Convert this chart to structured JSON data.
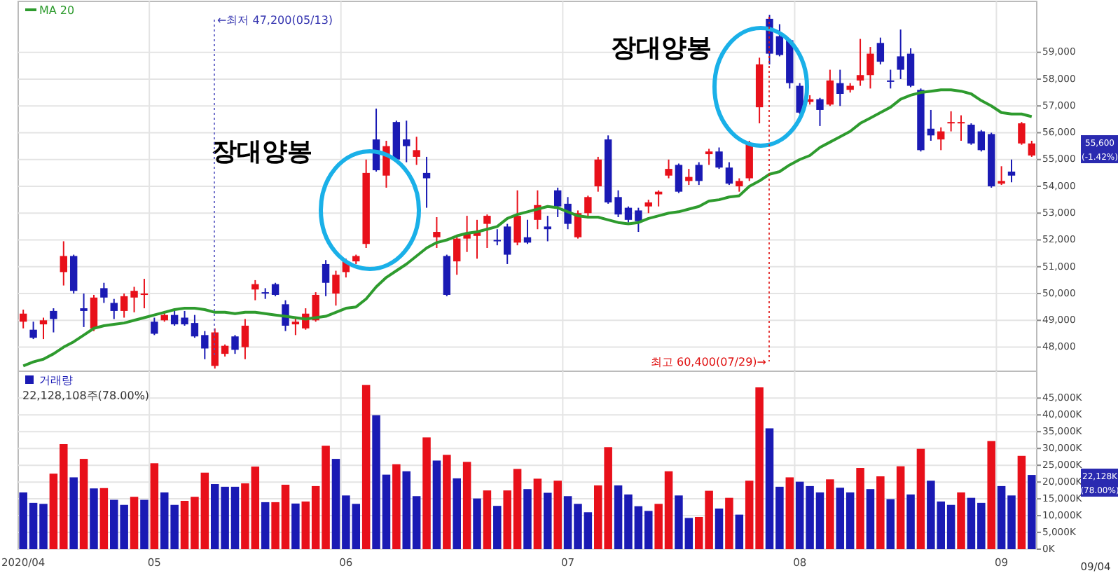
{
  "chart_data": [
    {
      "type": "candlestick",
      "grid": true,
      "tick_labels": "y",
      "legend": "top left",
      "ylim": [
        47100,
        60900
      ],
      "yticks": [
        {
          "value": 48000,
          "label": "48,000"
        },
        {
          "value": 49000,
          "label": "49,000"
        },
        {
          "value": 50000,
          "label": "50,000"
        },
        {
          "value": 51000,
          "label": "51,000"
        },
        {
          "value": 52000,
          "label": "52,000"
        },
        {
          "value": 53000,
          "label": "53,000"
        },
        {
          "value": 54000,
          "label": "54,000"
        },
        {
          "value": 55000,
          "label": "55,000"
        },
        {
          "value": 56000,
          "label": "56,000"
        },
        {
          "value": 57000,
          "label": "57,000"
        },
        {
          "value": 58000,
          "label": "58,000"
        },
        {
          "value": 59000,
          "label": "59,000"
        }
      ],
      "categories": [
        "2020/04",
        null,
        null,
        null,
        null,
        null,
        null,
        null,
        null,
        null,
        null,
        null,
        null,
        "05",
        null,
        null,
        null,
        null,
        null,
        null,
        null,
        null,
        null,
        null,
        null,
        null,
        null,
        null,
        null,
        null,
        null,
        null,
        "06",
        null,
        null,
        null,
        null,
        null,
        null,
        null,
        null,
        null,
        null,
        null,
        null,
        null,
        null,
        null,
        null,
        null,
        null,
        null,
        null,
        null,
        "07",
        null,
        null,
        null,
        null,
        null,
        null,
        null,
        null,
        null,
        null,
        null,
        null,
        null,
        null,
        null,
        null,
        null,
        null,
        null,
        null,
        null,
        null,
        "08",
        null,
        null,
        null,
        null,
        null,
        null,
        null,
        null,
        null,
        null,
        null,
        null,
        null,
        null,
        null,
        null,
        null,
        null,
        null,
        "09",
        null,
        null,
        null
      ],
      "ohlc": [
        [
          48950,
          49400,
          48700,
          49250
        ],
        [
          48650,
          48950,
          48300,
          48350
        ],
        [
          48850,
          49100,
          48300,
          49000
        ],
        [
          49350,
          49450,
          48550,
          49050
        ],
        [
          50800,
          51950,
          50300,
          51400
        ],
        [
          51400,
          51450,
          50000,
          50100
        ],
        [
          49450,
          50000,
          48750,
          49350
        ],
        [
          48700,
          49950,
          48600,
          49850
        ],
        [
          50200,
          50400,
          49650,
          49850
        ],
        [
          49650,
          49800,
          49050,
          49350
        ],
        [
          49350,
          50000,
          49100,
          49900
        ],
        [
          49850,
          50250,
          49300,
          50100
        ],
        [
          49950,
          50550,
          49450,
          50000
        ],
        [
          48950,
          49100,
          48450,
          48500
        ],
        [
          49000,
          49350,
          48950,
          49200
        ],
        [
          49200,
          49350,
          48800,
          48850
        ],
        [
          49100,
          49350,
          48800,
          48850
        ],
        [
          48900,
          49200,
          48350,
          48400
        ],
        [
          48450,
          48600,
          47550,
          47950
        ],
        [
          47300,
          48700,
          47200,
          48550
        ],
        [
          47750,
          48100,
          47650,
          48050
        ],
        [
          48400,
          48450,
          47750,
          47900
        ],
        [
          48000,
          49050,
          47550,
          48800
        ],
        [
          50150,
          50500,
          49750,
          50350
        ],
        [
          50050,
          50200,
          49800,
          50000
        ],
        [
          50350,
          50400,
          49900,
          49950
        ],
        [
          49600,
          49750,
          48600,
          48800
        ],
        [
          48850,
          49100,
          48450,
          48950
        ],
        [
          48700,
          49450,
          48650,
          49250
        ],
        [
          49000,
          50050,
          48950,
          49950
        ],
        [
          51100,
          51250,
          49900,
          50400
        ],
        [
          50000,
          50850,
          49550,
          50700
        ],
        [
          50800,
          51300,
          50600,
          51200
        ],
        [
          51200,
          51450,
          51100,
          51400
        ],
        [
          51850,
          55000,
          51700,
          54500
        ],
        [
          55750,
          56900,
          54550,
          54600
        ],
        [
          54400,
          55700,
          53950,
          55500
        ],
        [
          56400,
          56450,
          54900,
          55000
        ],
        [
          55750,
          56450,
          54900,
          55500
        ],
        [
          55100,
          55850,
          54800,
          55350
        ],
        [
          54500,
          55100,
          53200,
          54300
        ],
        [
          52100,
          52850,
          51700,
          52300
        ],
        [
          51400,
          51450,
          49900,
          49950
        ],
        [
          51200,
          52150,
          50700,
          52050
        ],
        [
          52050,
          52900,
          51550,
          52250
        ],
        [
          52150,
          52750,
          51300,
          52300
        ],
        [
          52600,
          52950,
          51700,
          52900
        ],
        [
          52000,
          52400,
          51800,
          51950
        ],
        [
          52500,
          52600,
          51100,
          51450
        ],
        [
          51900,
          53850,
          51800,
          52900
        ],
        [
          52100,
          52750,
          51850,
          51900
        ],
        [
          52750,
          53850,
          52400,
          53300
        ],
        [
          52500,
          52900,
          51950,
          52400
        ],
        [
          53850,
          53950,
          52850,
          53250
        ],
        [
          53350,
          53600,
          52400,
          52600
        ],
        [
          52100,
          53100,
          52050,
          53000
        ],
        [
          53000,
          53650,
          52900,
          53600
        ],
        [
          54000,
          55100,
          53800,
          55000
        ],
        [
          55750,
          55900,
          53350,
          53400
        ],
        [
          53600,
          53850,
          52850,
          52950
        ],
        [
          53200,
          53250,
          52650,
          52750
        ],
        [
          53100,
          53200,
          52300,
          52700
        ],
        [
          53250,
          53500,
          53000,
          53400
        ],
        [
          53700,
          53850,
          53250,
          53800
        ],
        [
          54400,
          55000,
          54300,
          54650
        ],
        [
          54800,
          54850,
          53750,
          53800
        ],
        [
          54200,
          54650,
          54050,
          54350
        ],
        [
          54800,
          54900,
          54050,
          54200
        ],
        [
          55200,
          55400,
          54800,
          55300
        ],
        [
          55300,
          55450,
          54650,
          54700
        ],
        [
          54700,
          54900,
          54050,
          54100
        ],
        [
          54000,
          54300,
          53800,
          54200
        ],
        [
          54300,
          55700,
          54200,
          55600
        ],
        [
          56950,
          58800,
          56350,
          58550
        ],
        [
          60250,
          60400,
          58550,
          58950
        ],
        [
          59600,
          60050,
          58850,
          58900
        ],
        [
          59450,
          59500,
          57650,
          57850
        ],
        [
          57750,
          57850,
          56700,
          56750
        ],
        [
          57150,
          57400,
          57050,
          57250
        ],
        [
          57250,
          57300,
          56250,
          56850
        ],
        [
          57050,
          58350,
          57000,
          57950
        ],
        [
          57850,
          58350,
          57000,
          57450
        ],
        [
          57600,
          57850,
          57500,
          57750
        ],
        [
          57950,
          59500,
          57750,
          58150
        ],
        [
          58150,
          59200,
          57650,
          58950
        ],
        [
          59350,
          59550,
          58550,
          58650
        ],
        [
          57950,
          58350,
          57650,
          57900
        ],
        [
          58850,
          59850,
          58000,
          58350
        ],
        [
          58950,
          59150,
          57700,
          57750
        ],
        [
          57600,
          57650,
          55300,
          55350
        ],
        [
          56150,
          56850,
          55700,
          55900
        ],
        [
          55750,
          56200,
          55350,
          56050
        ],
        [
          56350,
          56800,
          56050,
          56400
        ],
        [
          56350,
          56650,
          55700,
          56400
        ],
        [
          56300,
          56350,
          55550,
          55600
        ],
        [
          56050,
          56100,
          55300,
          55350
        ],
        [
          55950,
          56000,
          53950,
          54000
        ],
        [
          54100,
          54750,
          54050,
          54200
        ],
        [
          54550,
          55000,
          54150,
          54400
        ],
        [
          55600,
          56400,
          55550,
          56350
        ],
        [
          55150,
          55700,
          55100,
          55600
        ]
      ],
      "colors": [
        "#e8101a",
        "#1a1ab4",
        "#e8101a",
        "#1a1ab4",
        "#e8101a",
        "#1a1ab4",
        "#1a1ab4",
        "#e8101a",
        "#1a1ab4",
        "#1a1ab4",
        "#e8101a",
        "#e8101a",
        "#e8101a",
        "#1a1ab4",
        "#e8101a",
        "#1a1ab4",
        "#1a1ab4",
        "#1a1ab4",
        "#1a1ab4",
        "#e8101a",
        "#e8101a",
        "#1a1ab4",
        "#e8101a",
        "#e8101a",
        "#1a1ab4",
        "#1a1ab4",
        "#1a1ab4",
        "#e8101a",
        "#e8101a",
        "#e8101a",
        "#1a1ab4",
        "#e8101a",
        "#e8101a",
        "#e8101a",
        "#e8101a",
        "#1a1ab4",
        "#e8101a",
        "#1a1ab4",
        "#1a1ab4",
        "#e8101a",
        "#1a1ab4",
        "#e8101a",
        "#1a1ab4",
        "#e8101a",
        "#e8101a",
        "#e8101a",
        "#e8101a",
        "#1a1ab4",
        "#1a1ab4",
        "#e8101a",
        "#1a1ab4",
        "#e8101a",
        "#1a1ab4",
        "#1a1ab4",
        "#1a1ab4",
        "#e8101a",
        "#e8101a",
        "#e8101a",
        "#1a1ab4",
        "#1a1ab4",
        "#1a1ab4",
        "#1a1ab4",
        "#e8101a",
        "#e8101a",
        "#e8101a",
        "#1a1ab4",
        "#e8101a",
        "#1a1ab4",
        "#e8101a",
        "#1a1ab4",
        "#1a1ab4",
        "#e8101a",
        "#e8101a",
        "#e8101a",
        "#1a1ab4",
        "#1a1ab4",
        "#1a1ab4",
        "#1a1ab4",
        "#e8101a",
        "#1a1ab4",
        "#e8101a",
        "#1a1ab4",
        "#e8101a",
        "#e8101a",
        "#e8101a",
        "#1a1ab4",
        "#1a1ab4",
        "#1a1ab4",
        "#1a1ab4",
        "#1a1ab4",
        "#1a1ab4",
        "#e8101a",
        "#e8101a",
        "#e8101a",
        "#1a1ab4",
        "#1a1ab4",
        "#1a1ab4",
        "#e8101a",
        "#1a1ab4",
        "#e8101a",
        "#e8101a"
      ],
      "series": [
        {
          "name": "MA 20",
          "type": "line",
          "color": "#2e9b2e",
          "values": [
            47300,
            47450,
            47550,
            47750,
            48000,
            48200,
            48450,
            48700,
            48800,
            48850,
            48900,
            49000,
            49100,
            49200,
            49300,
            49400,
            49450,
            49450,
            49400,
            49300,
            49300,
            49250,
            49300,
            49300,
            49250,
            49200,
            49150,
            49100,
            49050,
            49100,
            49150,
            49300,
            49450,
            49500,
            49800,
            50250,
            50600,
            50850,
            51100,
            51400,
            51700,
            51900,
            52000,
            52150,
            52250,
            52300,
            52400,
            52500,
            52800,
            52950,
            53050,
            53150,
            53250,
            53200,
            53050,
            52900,
            52850,
            52850,
            52750,
            52650,
            52600,
            52650,
            52800,
            52900,
            53000,
            53050,
            53150,
            53250,
            53450,
            53500,
            53600,
            53650,
            54000,
            54200,
            54450,
            54550,
            54800,
            55000,
            55150,
            55450,
            55650,
            55850,
            56050,
            56350,
            56550,
            56750,
            56950,
            57250,
            57400,
            57500,
            57550,
            57600,
            57600,
            57550,
            57450,
            57200,
            57000,
            56750,
            56700,
            56700,
            56600
          ]
        }
      ],
      "annotations": [
        "장대양봉",
        "장대양봉",
        "←최저 47,200(05/13)",
        "최고 60,400(07/29)→",
        "55,600",
        "(-1.42%)"
      ]
    },
    {
      "type": "bar",
      "grid": true,
      "legend": "top left",
      "ylim": [
        0,
        53000
      ],
      "yticks": [
        {
          "value": 0,
          "label": "0K"
        },
        {
          "value": 5000,
          "label": "5,000K"
        },
        {
          "value": 10000,
          "label": "10,000K"
        },
        {
          "value": 15000,
          "label": "15,000K"
        },
        {
          "value": 20000,
          "label": "20,000K"
        },
        {
          "value": 25000,
          "label": "25,000K"
        },
        {
          "value": 30000,
          "label": "30,000K"
        },
        {
          "value": 35000,
          "label": "35,000K"
        },
        {
          "value": 40000,
          "label": "40,000K"
        },
        {
          "value": 45000,
          "label": "45,000K"
        }
      ],
      "categories": [
        "2020/04",
        null,
        null,
        null,
        null,
        null,
        null,
        null,
        null,
        null,
        null,
        null,
        null,
        "05",
        null,
        null,
        null,
        null,
        null,
        null,
        null,
        null,
        null,
        null,
        null,
        null,
        null,
        null,
        null,
        null,
        null,
        null,
        "06",
        null,
        null,
        null,
        null,
        null,
        null,
        null,
        null,
        null,
        null,
        null,
        null,
        null,
        null,
        null,
        null,
        null,
        null,
        null,
        null,
        null,
        "07",
        null,
        null,
        null,
        null,
        null,
        null,
        null,
        null,
        null,
        null,
        null,
        null,
        null,
        null,
        null,
        null,
        null,
        null,
        null,
        null,
        null,
        null,
        "08",
        null,
        null,
        null,
        null,
        null,
        null,
        null,
        null,
        null,
        null,
        null,
        null,
        null,
        null,
        null,
        null,
        null,
        null,
        null,
        "09",
        null,
        null,
        null
      ],
      "series": [
        {
          "name": "거래량",
          "color": "#1a1ab4",
          "values": [
            16900,
            13800,
            13500,
            22500,
            31300,
            21400,
            26900,
            18100,
            18200,
            14700,
            13200,
            15600,
            14700,
            25600,
            16900,
            13200,
            14400,
            15600,
            22800,
            19400,
            18600,
            18600,
            19600,
            24600,
            14000,
            14000,
            19200,
            13600,
            14200,
            18800,
            30800,
            26900,
            16000,
            13500,
            48900,
            39900,
            22200,
            25300,
            23200,
            15800,
            33300,
            26400,
            28100,
            21100,
            26000,
            15100,
            17500,
            12900,
            17500,
            23900,
            17900,
            21000,
            16800,
            20400,
            15800,
            13500,
            11000,
            19000,
            30400,
            19000,
            16300,
            12800,
            11400,
            13500,
            23200,
            16000,
            9300,
            9600,
            17400,
            12100,
            15300,
            10300,
            20400,
            48200,
            36000,
            18600,
            21400,
            20100,
            18800,
            16900,
            20800,
            18300,
            16900,
            24200,
            17900,
            21700,
            14900,
            24700,
            16300,
            29900,
            20400,
            14200,
            13200,
            16900,
            15300,
            13800,
            32200,
            18800,
            16000,
            27800,
            22100
          ],
          "colors": [
            "#1a1ab4",
            "#1a1ab4",
            "#1a1ab4",
            "#e8101a",
            "#e8101a",
            "#1a1ab4",
            "#e8101a",
            "#1a1ab4",
            "#e8101a",
            "#1a1ab4",
            "#1a1ab4",
            "#e8101a",
            "#1a1ab4",
            "#e8101a",
            "#1a1ab4",
            "#1a1ab4",
            "#e8101a",
            "#e8101a",
            "#e8101a",
            "#1a1ab4",
            "#1a1ab4",
            "#1a1ab4",
            "#e8101a",
            "#e8101a",
            "#1a1ab4",
            "#e8101a",
            "#e8101a",
            "#1a1ab4",
            "#e8101a",
            "#e8101a",
            "#e8101a",
            "#1a1ab4",
            "#1a1ab4",
            "#1a1ab4",
            "#e8101a",
            "#1a1ab4",
            "#1a1ab4",
            "#e8101a",
            "#1a1ab4",
            "#1a1ab4",
            "#e8101a",
            "#1a1ab4",
            "#e8101a",
            "#1a1ab4",
            "#e8101a",
            "#1a1ab4",
            "#e8101a",
            "#1a1ab4",
            "#e8101a",
            "#e8101a",
            "#1a1ab4",
            "#e8101a",
            "#1a1ab4",
            "#e8101a",
            "#1a1ab4",
            "#1a1ab4",
            "#1a1ab4",
            "#e8101a",
            "#e8101a",
            "#1a1ab4",
            "#1a1ab4",
            "#1a1ab4",
            "#1a1ab4",
            "#e8101a",
            "#e8101a",
            "#1a1ab4",
            "#1a1ab4",
            "#e8101a",
            "#e8101a",
            "#1a1ab4",
            "#e8101a",
            "#1a1ab4",
            "#e8101a",
            "#e8101a",
            "#1a1ab4",
            "#1a1ab4",
            "#e8101a",
            "#1a1ab4",
            "#1a1ab4",
            "#1a1ab4",
            "#e8101a",
            "#1a1ab4",
            "#1a1ab4",
            "#e8101a",
            "#1a1ab4",
            "#e8101a",
            "#1a1ab4",
            "#e8101a",
            "#1a1ab4",
            "#e8101a",
            "#1a1ab4",
            "#1a1ab4",
            "#1a1ab4",
            "#e8101a",
            "#1a1ab4",
            "#1a1ab4",
            "#e8101a",
            "#1a1ab4",
            "#1a1ab4",
            "#e8101a",
            "#1a1ab4"
          ]
        }
      ],
      "annotations": [
        "22,128,108주(78.00%)",
        "22,128K",
        "(78.00%)",
        "09/04"
      ]
    }
  ]
}
